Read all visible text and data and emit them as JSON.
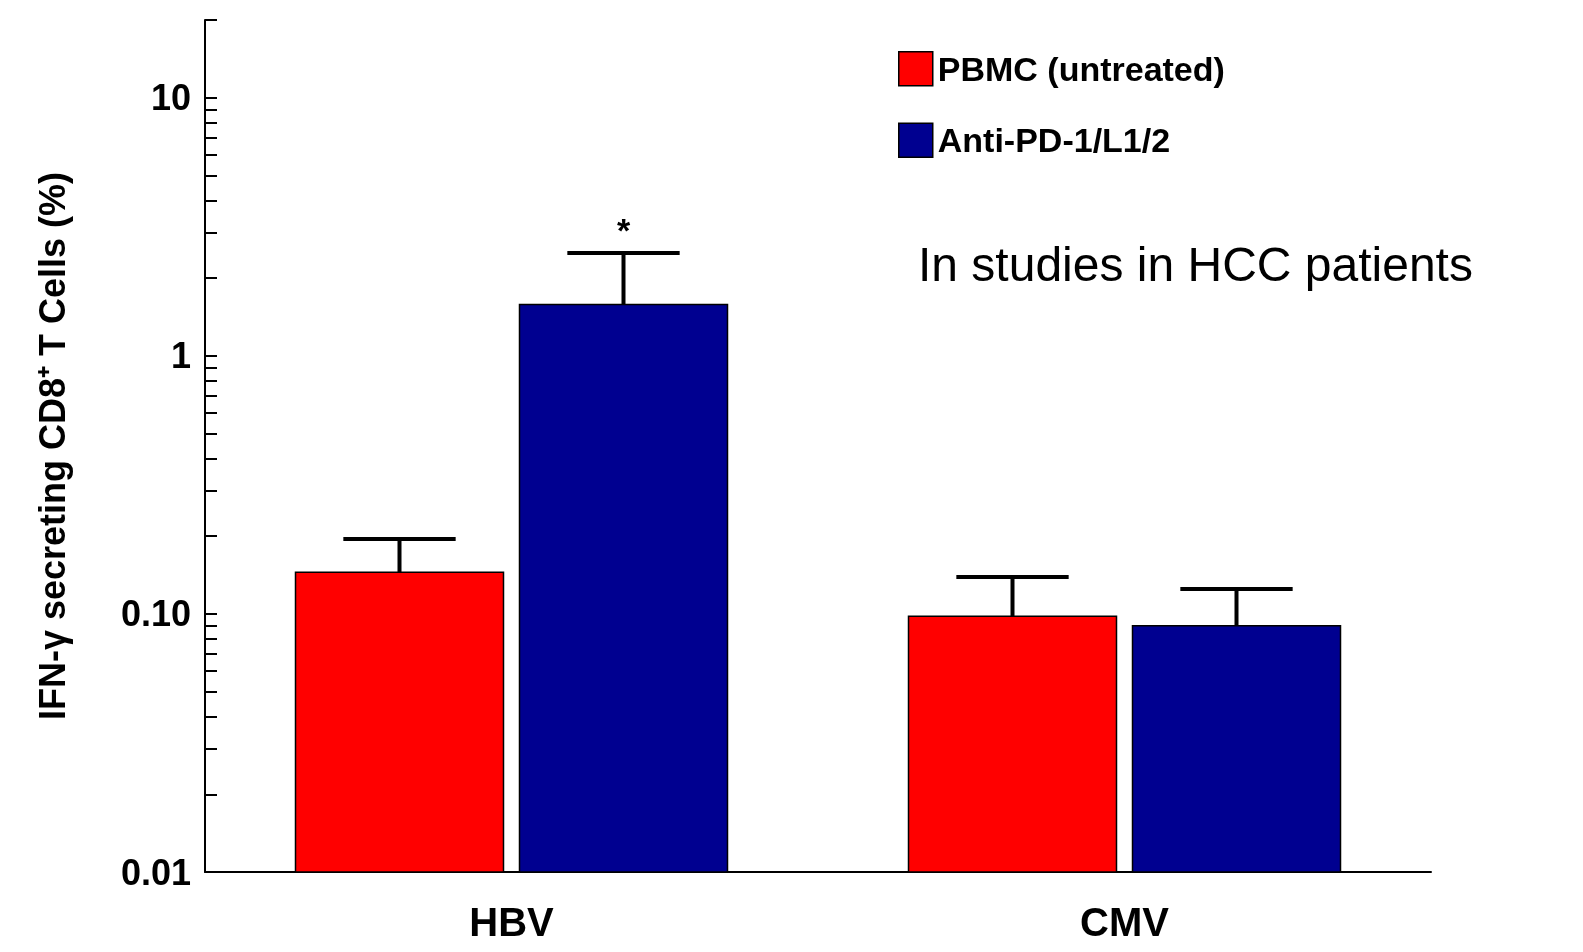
{
  "chart_data": {
    "type": "bar",
    "ylabel": "IFN-γ secreting CD8⁺ T Cells (%)",
    "categories": [
      "HBV",
      "CMV"
    ],
    "series": [
      {
        "name": "PBMC (untreated)",
        "color": "#ff0000",
        "values": [
          0.145,
          0.098
        ],
        "errors": [
          [
            0.145,
            0.195
          ],
          [
            0.098,
            0.139
          ]
        ]
      },
      {
        "name": "Anti-PD-1/L1/2",
        "color": "#000090",
        "values": [
          1.58,
          0.09
        ],
        "errors": [
          [
            1.58,
            2.5
          ],
          [
            0.09,
            0.125
          ]
        ],
        "value_labels": [
          "*",
          null
        ]
      }
    ],
    "log": "y",
    "ylim": [
      0.01,
      20
    ],
    "yticks": [
      {
        "value": 0.01,
        "label": "0.01"
      },
      {
        "value": 0.02,
        "label": null
      },
      {
        "value": 0.03,
        "label": null
      },
      {
        "value": 0.04,
        "label": null
      },
      {
        "value": 0.05,
        "label": null
      },
      {
        "value": 0.06,
        "label": null
      },
      {
        "value": 0.07,
        "label": null
      },
      {
        "value": 0.08,
        "label": null
      },
      {
        "value": 0.09,
        "label": null
      },
      {
        "value": 0.1,
        "label": "0.10"
      },
      {
        "value": 0.2,
        "label": null
      },
      {
        "value": 0.3,
        "label": null
      },
      {
        "value": 0.4,
        "label": null
      },
      {
        "value": 0.5,
        "label": null
      },
      {
        "value": 0.6,
        "label": null
      },
      {
        "value": 0.7,
        "label": null
      },
      {
        "value": 0.8,
        "label": null
      },
      {
        "value": 0.9,
        "label": null
      },
      {
        "value": 1,
        "label": "1"
      },
      {
        "value": 2,
        "label": null
      },
      {
        "value": 3,
        "label": null
      },
      {
        "value": 4,
        "label": null
      },
      {
        "value": 5,
        "label": null
      },
      {
        "value": 6,
        "label": null
      },
      {
        "value": 7,
        "label": null
      },
      {
        "value": 8,
        "label": null
      },
      {
        "value": 9,
        "label": null
      },
      {
        "value": 10,
        "label": "10"
      },
      {
        "value": 20,
        "label": null
      }
    ],
    "grid": false,
    "legend": "top right",
    "annotations": [
      "In studies in HCC patients"
    ]
  }
}
